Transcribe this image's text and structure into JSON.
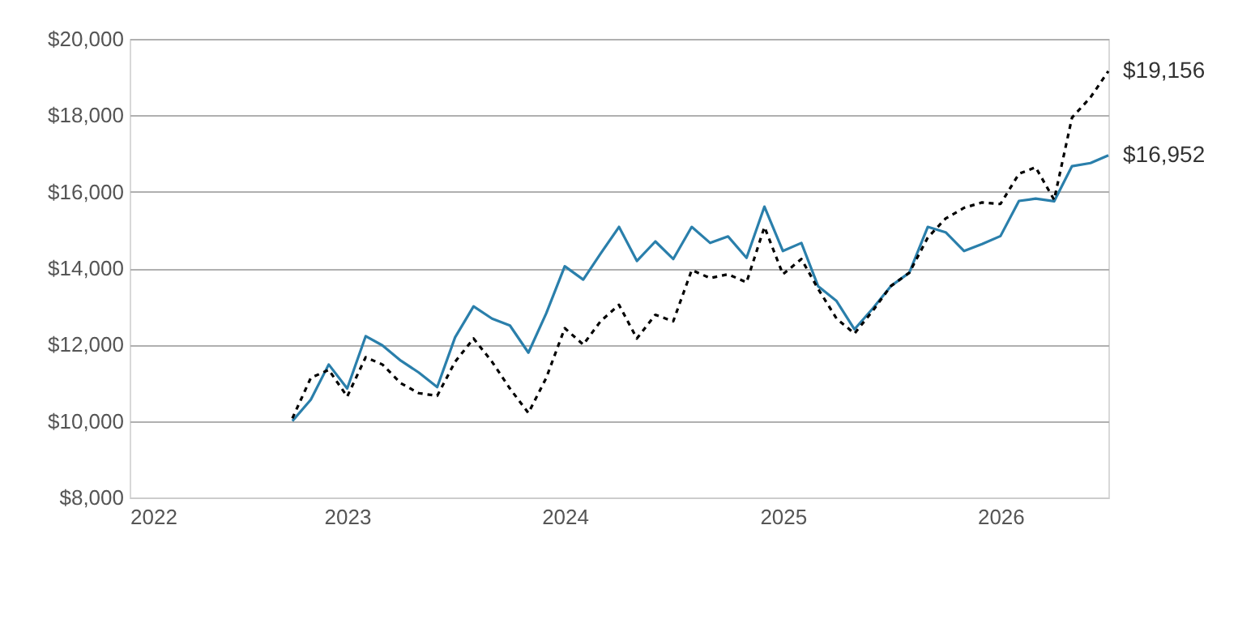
{
  "chart_data": {
    "type": "line",
    "x": [
      "2022-10",
      "2022-11",
      "2022-12",
      "2023-01",
      "2023-02",
      "2023-03",
      "2023-04",
      "2023-05",
      "2023-06",
      "2023-07",
      "2023-08",
      "2023-09",
      "2023-10",
      "2023-11",
      "2023-12",
      "2024-01",
      "2024-02",
      "2024-03",
      "2024-04",
      "2024-05",
      "2024-06",
      "2024-07",
      "2024-08",
      "2024-09",
      "2024-10",
      "2024-11",
      "2024-12",
      "2025-01",
      "2025-02",
      "2025-03",
      "2025-04",
      "2025-05",
      "2025-06",
      "2025-07",
      "2025-08",
      "2025-09",
      "2025-10",
      "2025-11",
      "2025-12",
      "2026-01",
      "2026-02",
      "2026-03",
      "2026-04",
      "2026-05",
      "2026-06",
      "2026-07"
    ],
    "series": [
      {
        "color": "#2a7fab",
        "line_style": "solid",
        "values": [
          10000,
          10560,
          11480,
          10850,
          12220,
          11980,
          11580,
          11270,
          10890,
          12190,
          13000,
          12680,
          12500,
          11790,
          12820,
          14050,
          13700,
          14380,
          15080,
          14190,
          14700,
          14240,
          15080,
          14660,
          14830,
          14270,
          15610,
          14450,
          14660,
          13530,
          13140,
          12400,
          12950,
          13530,
          13880,
          15080,
          14940,
          14450,
          14630,
          14840,
          15760,
          15820,
          15750,
          16670,
          16750,
          16952
        ]
      },
      {
        "color": "#000000",
        "line_style": "dashed",
        "values": [
          10070,
          11130,
          11340,
          10640,
          11670,
          11480,
          10990,
          10730,
          10660,
          11550,
          12160,
          11550,
          10850,
          10210,
          11130,
          12430,
          12000,
          12610,
          13040,
          12160,
          12780,
          12610,
          13950,
          13740,
          13840,
          13630,
          15080,
          13840,
          14240,
          13460,
          12680,
          12290,
          12890,
          13530,
          13880,
          14800,
          15300,
          15580,
          15720,
          15680,
          16470,
          16640,
          15790,
          17940,
          18470,
          19156
        ]
      }
    ],
    "xlim": [
      "2022-01",
      "2026-07"
    ],
    "xticks": [
      "2022",
      "2023",
      "2024",
      "2025",
      "2026"
    ],
    "ylim": [
      8000,
      20000
    ],
    "yticks": [
      {
        "value": 8000,
        "label": "$8,000"
      },
      {
        "value": 10000,
        "label": "$10,000"
      },
      {
        "value": 12000,
        "label": "$12,000"
      },
      {
        "value": 14000,
        "label": "$14,000"
      },
      {
        "value": 16000,
        "label": "$16,000"
      },
      {
        "value": 18000,
        "label": "$18,000"
      },
      {
        "value": 20000,
        "label": "$20,000"
      }
    ],
    "grid": "y",
    "annotations": [
      {
        "text": "$19,156",
        "x": "2026-07",
        "y": 19156
      },
      {
        "text": "$16,952",
        "x": "2026-07",
        "y": 16952
      }
    ]
  }
}
